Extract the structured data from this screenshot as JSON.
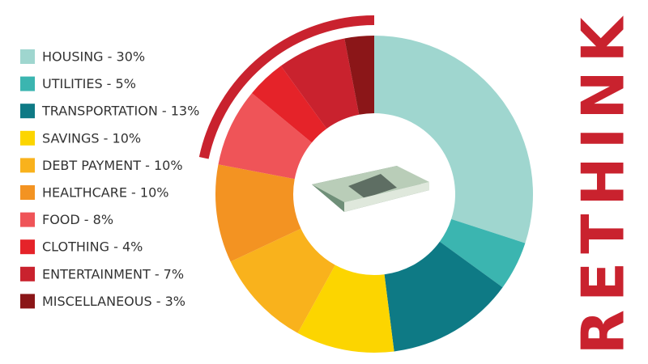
{
  "chart_data": {
    "type": "donut",
    "categories": [
      "HOUSING - 30%",
      "UTILITIES - 5%",
      "TRANSPORTATION - 13%",
      "SAVINGS - 10%",
      "DEBT PAYMENT - 10%",
      "HEALTHCARE - 10%",
      "FOOD - 8%",
      "CLOTHING - 4%",
      "ENTERTAINMENT - 7%",
      "MISCELLANEOUS - 3%"
    ],
    "values": [
      30,
      5,
      13,
      10,
      10,
      10,
      8,
      4,
      7,
      3
    ],
    "colors": [
      "#9fd6cf",
      "#3bb5b0",
      "#0e7a85",
      "#fcd500",
      "#f9b21c",
      "#f39322",
      "#ef5458",
      "#e52329",
      "#c9222e",
      "#8b1618"
    ],
    "legend": "left"
  },
  "logo": "RETHINK"
}
